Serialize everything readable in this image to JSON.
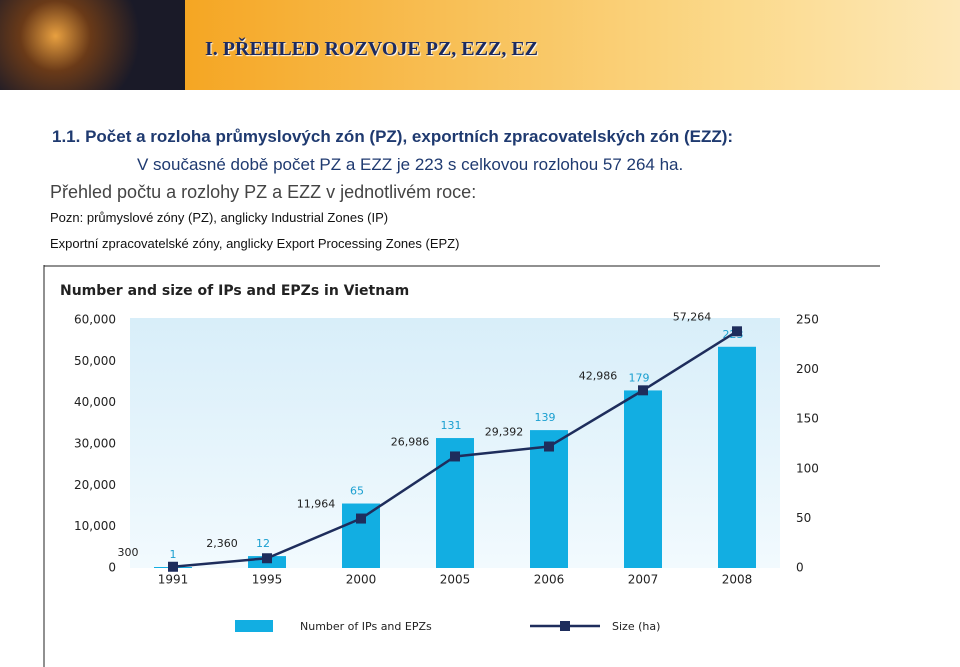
{
  "header": {
    "title": "I. PŘEHLED ROZVOJE PZ, EZZ, EZ"
  },
  "text": {
    "heading": "1.1. Počet a rozloha průmyslových zón (PZ), exportních zpracovatelských zón (EZZ):",
    "summary": "V současné době počet PZ a EZZ je 223 s celkovou rozlohou 57 264 ha.",
    "intro": "Přehled počtu a rozlohy PZ a EZZ v jednotlivém roce:",
    "note1": "Pozn: průmyslové zóny (PZ), anglicky Industrial Zones (IP)",
    "note2": "Exportní zpracovatelské zóny, anglicky Export Processing Zones (EPZ)"
  },
  "chart_data": {
    "type": "bar",
    "title": "Number and size of IPs and EPZs in Vietnam",
    "categories": [
      "1991",
      "1995",
      "2000",
      "2005",
      "2006",
      "2007",
      "2008"
    ],
    "series": [
      {
        "name": "Number of IPs and EPZs",
        "type": "bar",
        "axis": "y2",
        "color": "#12aee2",
        "values": [
          1,
          12,
          65,
          131,
          139,
          179,
          223
        ]
      },
      {
        "name": "Size (ha)",
        "type": "line",
        "axis": "y",
        "color": "#1e2d5c",
        "values": [
          300,
          2360,
          11964,
          26986,
          29392,
          42986,
          57264
        ],
        "value_labels": [
          "300",
          "2,360",
          "11,964",
          "26,986",
          "29,392",
          "42,986",
          "57,264"
        ]
      }
    ],
    "ylim": [
      0,
      60000
    ],
    "yticks": [
      0,
      {
        "value": 10000,
        "label": "10,000"
      },
      {
        "value": 20000,
        "label": "20,000"
      },
      {
        "value": 30000,
        "label": "30,000"
      },
      {
        "value": 40000,
        "label": "40,000"
      },
      {
        "value": 50000,
        "label": "50,000"
      },
      {
        "value": 60000,
        "label": "60,000"
      }
    ],
    "y2lim": [
      0,
      250
    ],
    "y2ticks": [
      0,
      50,
      100,
      150,
      200,
      250
    ],
    "legend": "bottom"
  }
}
